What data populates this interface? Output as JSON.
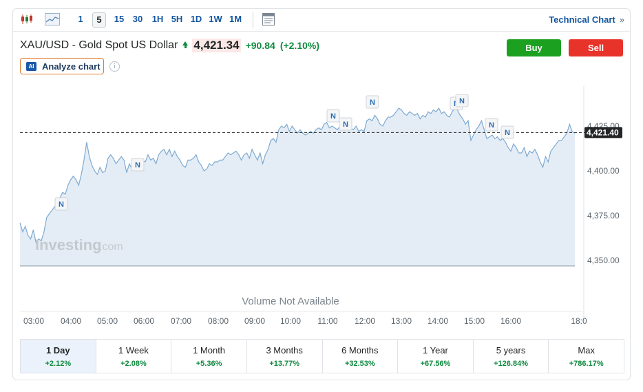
{
  "toolbar": {
    "timeframes": [
      "1",
      "5",
      "15",
      "30",
      "1H",
      "5H",
      "1D",
      "1W",
      "1M"
    ],
    "active_timeframe": "5",
    "technical_chart_label": "Technical Chart",
    "technical_chart_arrow": "»"
  },
  "instrument": {
    "title": "XAU/USD - Gold Spot US Dollar",
    "price": "4,421.34",
    "change": "+90.84",
    "change_pct": "(+2.10%)"
  },
  "actions": {
    "buy": "Buy",
    "sell": "Sell"
  },
  "analyze": {
    "badge": "AI",
    "label": "Analyze chart",
    "info": "i"
  },
  "chart": {
    "watermark_main": "Investing",
    "watermark_suffix": ".com",
    "volume_note": "Volume Not Available",
    "last_price_label": "4,421.40",
    "news_marker": "N",
    "colors": {
      "line": "#7fa9d0",
      "fill": "#e4edf6",
      "up": "#0e8a3e",
      "down": "#e8332a",
      "accent": "#1256a0"
    }
  },
  "chart_data": {
    "type": "area",
    "x_ticks": [
      "03:00",
      "04:00",
      "05:00",
      "06:00",
      "07:00",
      "08:00",
      "09:00",
      "10:00",
      "11:00",
      "12:00",
      "13:00",
      "14:00",
      "15:00",
      "16:00",
      "18:0"
    ],
    "y_ticks": [
      "4,350.00",
      "4,375.00",
      "4,400.00",
      "4,425.00"
    ],
    "ylim": [
      4350,
      4425
    ],
    "last_value": 4421.4,
    "series": [
      {
        "values": [
          4371,
          4366,
          4369,
          4364,
          4362,
          4367,
          4360,
          4362,
          4361,
          4366,
          4374,
          4376,
          4378,
          4380,
          4383,
          4385,
          4388,
          4387,
          4392,
          4395,
          4397,
          4395,
          4392,
          4398,
          4406,
          4416,
          4408,
          4403,
          4400,
          4398,
          4402,
          4399,
          4400,
          4407,
          4409,
          4407,
          4404,
          4406,
          4408,
          4406,
          4399,
          4404,
          4401,
          4405,
          4403,
          4405,
          4406,
          4405,
          4409,
          4406,
          4407,
          4404,
          4409,
          4411,
          4412,
          4409,
          4412,
          4408,
          4411,
          4408,
          4406,
          4403,
          4402,
          4406,
          4406,
          4407,
          4409,
          4405,
          4403,
          4400,
          4401,
          4404,
          4403,
          4405,
          4405,
          4406,
          4406,
          4408,
          4410,
          4409,
          4410,
          4411,
          4409,
          4406,
          4409,
          4410,
          4407,
          4412,
          4409,
          4406,
          4410,
          4404,
          4409,
          4412,
          4417,
          4418,
          4416,
          4423,
          4425,
          4424,
          4426,
          4422,
          4425,
          4423,
          4421,
          4423,
          4421,
          4420,
          4421,
          4422,
          4421,
          4423,
          4424,
          4423,
          4426,
          4427,
          4424,
          4425,
          4424,
          4423,
          4425,
          4426,
          4427,
          4424,
          4424,
          4423,
          4425,
          4422,
          4423,
          4422,
          4428,
          4429,
          4428,
          4431,
          4429,
          4426,
          4425,
          4428,
          4430,
          4430,
          4431,
          4433,
          4435,
          4434,
          4432,
          4431,
          4433,
          4432,
          4431,
          4432,
          4429,
          4431,
          4430,
          4433,
          4432,
          4434,
          4433,
          4435,
          4432,
          4433,
          4431,
          4430,
          4433,
          4435,
          4434,
          4431,
          4429,
          4426,
          4428,
          4417,
          4420,
          4423,
          4425,
          4428,
          4423,
          4418,
          4419,
          4420,
          4418,
          4419,
          4417,
          4418,
          4416,
          4413,
          4411,
          4415,
          4413,
          4410,
          4410,
          4413,
          4408,
          4411,
          4410,
          4412,
          4409,
          4405,
          4402,
          4408,
          4405,
          4411,
          4413,
          4415,
          4417,
          4417,
          4419,
          4421,
          4426,
          4422,
          4421
        ]
      }
    ],
    "news_markers": 12
  },
  "periods": [
    {
      "label": "1 Day",
      "change": "+2.12%"
    },
    {
      "label": "1 Week",
      "change": "+2.08%"
    },
    {
      "label": "1 Month",
      "change": "+5.36%"
    },
    {
      "label": "3 Months",
      "change": "+13.77%"
    },
    {
      "label": "6 Months",
      "change": "+32.53%"
    },
    {
      "label": "1 Year",
      "change": "+67.56%"
    },
    {
      "label": "5 years",
      "change": "+126.84%"
    },
    {
      "label": "Max",
      "change": "+786.17%"
    }
  ],
  "active_period": "1 Day"
}
